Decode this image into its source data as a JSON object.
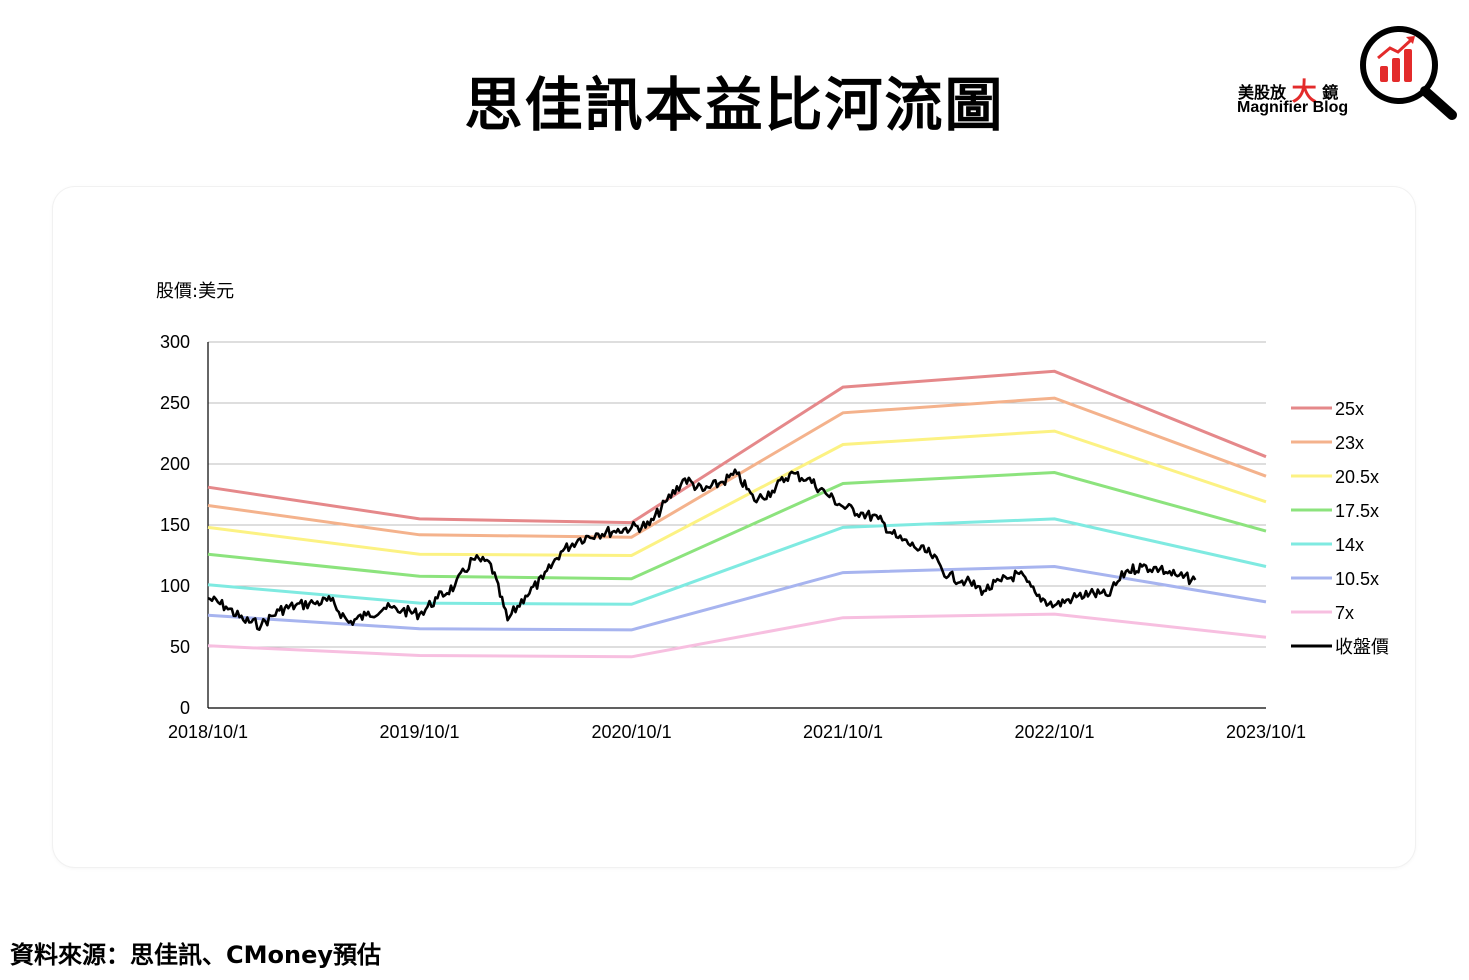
{
  "title": "思佳訊本益比河流圖",
  "brand": {
    "cn_prefix": "美股放",
    "cn_accent": "大",
    "cn_suffix": "鏡",
    "en": "Magnifier Blog",
    "accent_color": "#e32b2b",
    "icon": "magnifier-chart-icon"
  },
  "source_text": "資料來源：思佳訊、CMoney預估",
  "chart_data": {
    "type": "line",
    "ylabel": "股價:美元",
    "ylim": [
      0,
      300
    ],
    "yticks": [
      0,
      50,
      100,
      150,
      200,
      250,
      300
    ],
    "xlim": [
      "2018/10/1",
      "2023/10/1"
    ],
    "xticks": [
      "2018/10/1",
      "2019/10/1",
      "2020/10/1",
      "2021/10/1",
      "2022/10/1",
      "2023/10/1"
    ],
    "grid": true,
    "legend_position": "right",
    "x": [
      "2018/10/1",
      "2019/10/1",
      "2020/10/1",
      "2021/10/1",
      "2022/10/1",
      "2023/10/1"
    ],
    "series": [
      {
        "name": "25x",
        "color": "#e5888a",
        "values": [
          181,
          155,
          152,
          263,
          276,
          206
        ]
      },
      {
        "name": "23x",
        "color": "#f4b28c",
        "values": [
          166,
          142,
          140,
          242,
          254,
          190
        ]
      },
      {
        "name": "20.5x",
        "color": "#fcf283",
        "values": [
          148,
          126,
          125,
          216,
          227,
          169
        ]
      },
      {
        "name": "17.5x",
        "color": "#8ce37d",
        "values": [
          126,
          108,
          106,
          184,
          193,
          145
        ]
      },
      {
        "name": "14x",
        "color": "#7feae1",
        "values": [
          101,
          86,
          85,
          148,
          155,
          116
        ]
      },
      {
        "name": "10.5x",
        "color": "#a7b4ef",
        "values": [
          76,
          65,
          64,
          111,
          116,
          87
        ]
      },
      {
        "name": "7x",
        "color": "#f7bfe0",
        "values": [
          51,
          43,
          42,
          74,
          77,
          58
        ]
      }
    ],
    "price_series": {
      "name": "收盤價",
      "color": "#000000",
      "points": [
        [
          "2018/10/1",
          90
        ],
        [
          "2018/11/1",
          83
        ],
        [
          "2018/12/1",
          72
        ],
        [
          "2019/1/1",
          68
        ],
        [
          "2019/2/1",
          80
        ],
        [
          "2019/3/1",
          84
        ],
        [
          "2019/4/1",
          86
        ],
        [
          "2019/5/1",
          88
        ],
        [
          "2019/6/1",
          70
        ],
        [
          "2019/7/1",
          76
        ],
        [
          "2019/8/1",
          82
        ],
        [
          "2019/9/1",
          80
        ],
        [
          "2019/10/1",
          77
        ],
        [
          "2019/11/1",
          90
        ],
        [
          "2019/12/1",
          100
        ],
        [
          "2020/1/1",
          122
        ],
        [
          "2020/2/1",
          118
        ],
        [
          "2020/3/1",
          72
        ],
        [
          "2020/4/1",
          92
        ],
        [
          "2020/5/1",
          106
        ],
        [
          "2020/6/1",
          128
        ],
        [
          "2020/7/1",
          138
        ],
        [
          "2020/8/1",
          143
        ],
        [
          "2020/9/1",
          145
        ],
        [
          "2020/10/1",
          148
        ],
        [
          "2020/11/1",
          150
        ],
        [
          "2020/12/1",
          170
        ],
        [
          "2021/1/1",
          188
        ],
        [
          "2021/2/1",
          178
        ],
        [
          "2021/3/1",
          184
        ],
        [
          "2021/4/1",
          192
        ],
        [
          "2021/5/1",
          170
        ],
        [
          "2021/6/1",
          178
        ],
        [
          "2021/7/1",
          192
        ],
        [
          "2021/8/1",
          188
        ],
        [
          "2021/9/1",
          176
        ],
        [
          "2021/10/1",
          165
        ],
        [
          "2021/11/1",
          160
        ],
        [
          "2021/12/1",
          155
        ],
        [
          "2022/1/1",
          140
        ],
        [
          "2022/2/1",
          132
        ],
        [
          "2022/3/1",
          126
        ],
        [
          "2022/4/1",
          108
        ],
        [
          "2022/5/1",
          104
        ],
        [
          "2022/6/1",
          96
        ],
        [
          "2022/7/1",
          104
        ],
        [
          "2022/8/1",
          110
        ],
        [
          "2022/9/1",
          92
        ],
        [
          "2022/10/1",
          84
        ],
        [
          "2022/11/1",
          90
        ],
        [
          "2022/12/1",
          94
        ],
        [
          "2023/1/1",
          92
        ],
        [
          "2023/2/1",
          112
        ],
        [
          "2023/3/1",
          116
        ],
        [
          "2023/4/1",
          114
        ],
        [
          "2023/5/1",
          108
        ],
        [
          "2023/6/1",
          105
        ]
      ]
    }
  }
}
